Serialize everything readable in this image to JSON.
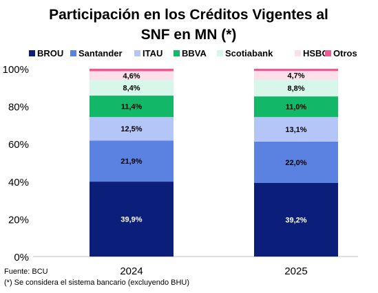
{
  "chart_data": {
    "type": "bar",
    "stacked": true,
    "title_line1": "Participación en los Créditos Vigentes al",
    "title_line2": "SNF en MN (*)",
    "categories": [
      "2024",
      "2025"
    ],
    "y_ticks": [
      "0%",
      "20%",
      "40%",
      "60%",
      "80%",
      "100%"
    ],
    "ylim": [
      0,
      100
    ],
    "legend_position": "top",
    "series": [
      {
        "name": "BROU",
        "color": "#0b1f7a",
        "label_color": "#ffffff",
        "values": [
          39.9,
          39.2
        ],
        "labels": [
          "39,9%",
          "39,2%"
        ]
      },
      {
        "name": "Santander",
        "color": "#5b82e0",
        "label_color": "#000000",
        "values": [
          21.9,
          22.0
        ],
        "labels": [
          "21,9%",
          "22,0%"
        ]
      },
      {
        "name": "ITAU",
        "color": "#b4c5f8",
        "label_color": "#000000",
        "values": [
          12.5,
          13.1
        ],
        "labels": [
          "12,5%",
          "13,1%"
        ]
      },
      {
        "name": "BBVA",
        "color": "#12b868",
        "label_color": "#000000",
        "values": [
          11.4,
          11.0
        ],
        "labels": [
          "11,4%",
          "11,0%"
        ]
      },
      {
        "name": "Scotiabank",
        "color": "#d6f7ea",
        "label_color": "#000000",
        "values": [
          8.4,
          8.8
        ],
        "labels": [
          "8,4%",
          "8,8%"
        ]
      },
      {
        "name": "HSBC",
        "color": "#fbe0ec",
        "label_color": "#000000",
        "values": [
          4.6,
          4.7
        ],
        "labels": [
          "4,6%",
          "4,7%"
        ]
      },
      {
        "name": "Otros",
        "color": "#ee5a92",
        "label_color": "#000000",
        "values": [
          1.3,
          1.2
        ],
        "labels": [
          "",
          ""
        ]
      }
    ]
  },
  "notes": {
    "source": "Fuente: BCU",
    "footnote": "(*) Se considera el sistema bancario (excluyendo BHU)"
  }
}
